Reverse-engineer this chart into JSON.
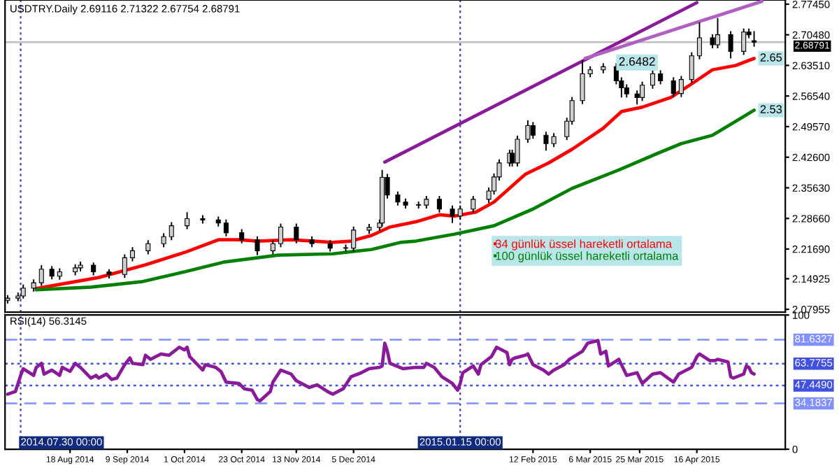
{
  "chart_data": [
    {
      "type": "candlestick",
      "title": "USDTRY.Daily 2.69116 2.71322 2.67754 2.68791",
      "x": [
        "2014-07-25",
        "2014-07-29",
        "2014-07-31",
        "2014-08-04",
        "2014-08-07",
        "2014-08-11",
        "2014-08-14",
        "2014-08-20",
        "2014-08-22",
        "2014-08-27",
        "2014-09-02",
        "2014-09-08",
        "2014-09-11",
        "2014-09-17",
        "2014-09-23",
        "2014-09-26",
        "2014-10-02",
        "2014-10-08",
        "2014-10-14",
        "2014-10-17",
        "2014-10-23",
        "2014-10-29",
        "2014-11-04",
        "2014-11-07",
        "2014-11-13",
        "2014-11-19",
        "2014-11-26",
        "2014-12-02",
        "2014-12-05",
        "2014-12-11",
        "2014-12-15",
        "2014-12-16",
        "2014-12-18",
        "2014-12-22",
        "2014-12-25",
        "2014-12-30",
        "2015-01-02",
        "2015-01-07",
        "2015-01-12",
        "2015-01-15",
        "2015-01-20",
        "2015-01-26",
        "2015-01-28",
        "2015-01-30",
        "2015-02-03",
        "2015-02-04",
        "2015-02-06",
        "2015-02-10",
        "2015-02-12",
        "2015-02-17",
        "2015-02-20",
        "2015-02-25",
        "2015-02-27",
        "2015-03-03",
        "2015-03-06",
        "2015-03-11",
        "2015-03-16",
        "2015-03-18",
        "2015-03-20",
        "2015-03-24",
        "2015-03-26",
        "2015-03-30",
        "2015-04-02",
        "2015-04-07",
        "2015-04-10",
        "2015-04-14",
        "2015-04-17",
        "2015-04-22",
        "2015-04-24",
        "2015-04-29",
        "2015-05-04",
        "2015-05-06",
        "2015-05-08"
      ],
      "ohlc": [
        [
          2.1,
          2.112,
          2.093,
          2.105
        ],
        [
          2.105,
          2.118,
          2.098,
          2.11
        ],
        [
          2.11,
          2.136,
          2.104,
          2.128
        ],
        [
          2.128,
          2.148,
          2.12,
          2.14
        ],
        [
          2.14,
          2.18,
          2.133,
          2.171
        ],
        [
          2.171,
          2.178,
          2.148,
          2.155
        ],
        [
          2.155,
          2.173,
          2.147,
          2.165
        ],
        [
          2.165,
          2.182,
          2.157,
          2.174
        ],
        [
          2.174,
          2.188,
          2.166,
          2.18
        ],
        [
          2.18,
          2.186,
          2.157,
          2.165
        ],
        [
          2.165,
          2.171,
          2.15,
          2.159
        ],
        [
          2.159,
          2.205,
          2.151,
          2.197
        ],
        [
          2.197,
          2.221,
          2.189,
          2.213
        ],
        [
          2.213,
          2.237,
          2.205,
          2.229
        ],
        [
          2.229,
          2.253,
          2.221,
          2.245
        ],
        [
          2.245,
          2.278,
          2.237,
          2.27
        ],
        [
          2.27,
          2.301,
          2.262,
          2.286
        ],
        [
          2.286,
          2.294,
          2.275,
          2.283
        ],
        [
          2.283,
          2.291,
          2.268,
          2.276
        ],
        [
          2.276,
          2.284,
          2.246,
          2.254
        ],
        [
          2.254,
          2.262,
          2.23,
          2.238
        ],
        [
          2.238,
          2.246,
          2.203,
          2.213
        ],
        [
          2.213,
          2.237,
          2.205,
          2.229
        ],
        [
          2.229,
          2.275,
          2.221,
          2.267
        ],
        [
          2.267,
          2.275,
          2.23,
          2.238
        ],
        [
          2.238,
          2.246,
          2.221,
          2.229
        ],
        [
          2.229,
          2.237,
          2.211,
          2.219
        ],
        [
          2.219,
          2.227,
          2.211,
          2.219
        ],
        [
          2.219,
          2.268,
          2.211,
          2.26
        ],
        [
          2.26,
          2.274,
          2.252,
          2.266
        ],
        [
          2.266,
          2.284,
          2.258,
          2.276
        ],
        [
          2.276,
          2.397,
          2.268,
          2.38
        ],
        [
          2.38,
          2.388,
          2.332,
          2.34
        ],
        [
          2.34,
          2.348,
          2.316,
          2.324
        ],
        [
          2.324,
          2.332,
          2.309,
          2.317
        ],
        [
          2.317,
          2.325,
          2.309,
          2.317
        ],
        [
          2.317,
          2.338,
          2.309,
          2.33
        ],
        [
          2.33,
          2.338,
          2.3,
          2.308
        ],
        [
          2.308,
          2.316,
          2.276,
          2.292
        ],
        [
          2.292,
          2.316,
          2.284,
          2.308
        ],
        [
          2.308,
          2.338,
          2.3,
          2.33
        ],
        [
          2.33,
          2.357,
          2.322,
          2.349
        ],
        [
          2.349,
          2.389,
          2.341,
          2.381
        ],
        [
          2.381,
          2.421,
          2.373,
          2.413
        ],
        [
          2.413,
          2.443,
          2.405,
          2.435
        ],
        [
          2.435,
          2.443,
          2.405,
          2.413
        ],
        [
          2.413,
          2.475,
          2.405,
          2.467
        ],
        [
          2.467,
          2.51,
          2.459,
          2.498
        ],
        [
          2.498,
          2.506,
          2.468,
          2.476
        ],
        [
          2.476,
          2.484,
          2.441,
          2.457
        ],
        [
          2.457,
          2.481,
          2.449,
          2.473
        ],
        [
          2.473,
          2.516,
          2.465,
          2.508
        ],
        [
          2.508,
          2.563,
          2.5,
          2.555
        ],
        [
          2.555,
          2.647,
          2.547,
          2.616
        ],
        [
          2.616,
          2.633,
          2.608,
          2.625
        ],
        [
          2.625,
          2.64,
          2.617,
          2.632
        ],
        [
          2.632,
          2.64,
          2.592,
          2.6
        ],
        [
          2.6,
          2.608,
          2.562,
          2.584
        ],
        [
          2.584,
          2.592,
          2.562,
          2.57
        ],
        [
          2.57,
          2.578,
          2.546,
          2.562
        ],
        [
          2.562,
          2.598,
          2.554,
          2.59
        ],
        [
          2.59,
          2.624,
          2.582,
          2.616
        ],
        [
          2.616,
          2.624,
          2.592,
          2.6
        ],
        [
          2.6,
          2.608,
          2.563,
          2.571
        ],
        [
          2.571,
          2.611,
          2.563,
          2.603
        ],
        [
          2.603,
          2.665,
          2.595,
          2.657
        ],
        [
          2.657,
          2.733,
          2.649,
          2.698
        ],
        [
          2.698,
          2.706,
          2.674,
          2.682
        ],
        [
          2.682,
          2.743,
          2.674,
          2.705
        ],
        [
          2.705,
          2.713,
          2.651,
          2.667
        ],
        [
          2.667,
          2.719,
          2.659,
          2.711
        ],
        [
          2.711,
          2.719,
          2.697,
          2.705
        ],
        [
          2.69116,
          2.71322,
          2.67754,
          2.68791
        ]
      ],
      "series": [
        {
          "type": "line",
          "name": "34 günlük üssel hareketli ortalama",
          "color": "#ff0000",
          "x": [
            "2014-08-05",
            "2014-08-29",
            "2014-09-16",
            "2014-10-01",
            "2014-10-14",
            "2014-10-22",
            "2014-10-29",
            "2014-11-11",
            "2014-11-27",
            "2014-12-04",
            "2014-12-12",
            "2014-12-19",
            "2014-12-29",
            "2015-01-07",
            "2015-01-13",
            "2015-01-21",
            "2015-01-28",
            "2015-02-09",
            "2015-02-18",
            "2015-02-27",
            "2015-03-11",
            "2015-03-18",
            "2015-03-26",
            "2015-04-06",
            "2015-04-14",
            "2015-04-22",
            "2015-05-01",
            "2015-05-08"
          ],
          "values": [
            2.127,
            2.152,
            2.181,
            2.209,
            2.238,
            2.238,
            2.235,
            2.238,
            2.232,
            2.235,
            2.248,
            2.267,
            2.279,
            2.295,
            2.292,
            2.301,
            2.324,
            2.387,
            2.413,
            2.444,
            2.492,
            2.53,
            2.54,
            2.562,
            2.593,
            2.625,
            2.635,
            2.651
          ],
          "value_labels": [
            null,
            null,
            null,
            null,
            null,
            null,
            null,
            null,
            null,
            null,
            null,
            null,
            null,
            null,
            null,
            null,
            null,
            null,
            null,
            null,
            null,
            null,
            null,
            null,
            null,
            null,
            null,
            "2.65"
          ]
        },
        {
          "type": "line",
          "name": "100 günlük üssel hareketli ortalama",
          "color": "#008000",
          "x": [
            "2014-08-05",
            "2014-08-26",
            "2014-09-15",
            "2014-10-01",
            "2014-10-16",
            "2014-11-06",
            "2014-11-27",
            "2014-12-12",
            "2014-12-23",
            "2014-12-29",
            "2015-01-13",
            "2015-01-28",
            "2015-02-12",
            "2015-02-27",
            "2015-03-17",
            "2015-04-01",
            "2015-04-10",
            "2015-04-22",
            "2015-05-01",
            "2015-05-08"
          ],
          "values": [
            2.124,
            2.13,
            2.143,
            2.165,
            2.187,
            2.203,
            2.206,
            2.216,
            2.232,
            2.235,
            2.251,
            2.27,
            2.308,
            2.355,
            2.397,
            2.435,
            2.457,
            2.476,
            2.508,
            2.533
          ],
          "value_labels": [
            null,
            null,
            null,
            null,
            null,
            null,
            null,
            null,
            null,
            null,
            null,
            null,
            null,
            null,
            null,
            null,
            null,
            null,
            null,
            "2.53"
          ]
        },
        {
          "type": "line",
          "color": "#8b1a9b",
          "x": [
            "2014-12-17",
            "2015-04-16"
          ],
          "values": [
            2.415,
            2.778
          ]
        },
        {
          "type": "line",
          "color": "#b060c0",
          "x": [
            "2015-03-04",
            "2015-05-11"
          ],
          "values": [
            2.651,
            2.781
          ]
        }
      ],
      "xlim": [
        "2014-07-24",
        "2015-05-20"
      ],
      "ylim": [
        2.073,
        2.784
      ],
      "yticks": [
        {
          "value": 2.7745,
          "label": "2.77450"
        },
        {
          "value": 2.7048,
          "label": "2.70480"
        },
        {
          "value": 2.6351,
          "label": "2.63510"
        },
        {
          "value": 2.5654,
          "label": "2.56540"
        },
        {
          "value": 2.4957,
          "label": "2.49570"
        },
        {
          "value": 2.426,
          "label": "2.42600"
        },
        {
          "value": 2.3563,
          "label": "2.35630"
        },
        {
          "value": 2.2866,
          "label": "2.28660"
        },
        {
          "value": 2.2169,
          "label": "2.21690"
        },
        {
          "value": 2.14925,
          "label": "2.14925"
        },
        {
          "value": 2.07955,
          "label": "2.07955"
        }
      ],
      "ref_lines": [
        {
          "axis": "y",
          "value": 2.68791,
          "label": "2.68791",
          "color": "#c0c0c0",
          "line_style": "solid"
        },
        {
          "axis": "x",
          "value": "2014-07-30",
          "color": "#4040c0",
          "line_style": "dotted"
        },
        {
          "axis": "x",
          "value": "2015-01-15",
          "color": "#4040c0",
          "line_style": "dotted"
        }
      ],
      "annotations": [
        "2.6482"
      ],
      "legend": "bottom right",
      "tick_labels": "y"
    },
    {
      "type": "line",
      "title": "RSI(14) 56.3145",
      "series": [
        {
          "color": "#8b1a9b",
          "x": [
            "2014-07-25",
            "2014-07-28",
            "2014-07-30",
            "2014-07-31",
            "2014-08-04",
            "2014-08-05",
            "2014-08-07",
            "2014-08-08",
            "2014-08-11",
            "2014-08-14",
            "2014-08-15",
            "2014-08-18",
            "2014-08-20",
            "2014-08-22",
            "2014-08-26",
            "2014-08-28",
            "2014-08-29",
            "2014-09-01",
            "2014-09-03",
            "2014-09-05",
            "2014-09-08",
            "2014-09-10",
            "2014-09-11",
            "2014-09-15",
            "2014-09-16",
            "2014-09-18",
            "2014-09-22",
            "2014-09-25",
            "2014-09-29",
            "2014-10-01",
            "2014-10-02",
            "2014-10-03",
            "2014-10-06",
            "2014-10-08",
            "2014-10-09",
            "2014-10-13",
            "2014-10-15",
            "2014-10-17",
            "2014-10-22",
            "2014-10-24",
            "2014-10-27",
            "2014-10-29",
            "2014-10-30",
            "2014-11-03",
            "2014-11-04",
            "2014-11-06",
            "2014-11-07",
            "2014-11-11",
            "2014-11-13",
            "2014-11-17",
            "2014-11-18",
            "2014-11-21",
            "2014-11-25",
            "2014-11-27",
            "2014-12-01",
            "2014-12-03",
            "2014-12-04",
            "2014-12-08",
            "2014-12-11",
            "2014-12-15",
            "2014-12-16",
            "2014-12-17",
            "2014-12-18",
            "2014-12-19",
            "2014-12-24",
            "2014-12-29",
            "2015-01-01",
            "2015-01-02",
            "2015-01-05",
            "2015-01-08",
            "2015-01-12",
            "2015-01-14",
            "2015-01-15",
            "2015-01-16",
            "2015-01-20",
            "2015-01-22",
            "2015-01-23",
            "2015-01-27",
            "2015-01-29",
            "2015-02-02",
            "2015-02-03",
            "2015-02-04",
            "2015-02-05",
            "2015-02-09",
            "2015-02-10",
            "2015-02-12",
            "2015-02-16",
            "2015-02-18",
            "2015-02-20",
            "2015-02-24",
            "2015-02-26",
            "2015-03-03",
            "2015-03-05",
            "2015-03-09",
            "2015-03-10",
            "2015-03-12",
            "2015-03-13",
            "2015-03-17",
            "2015-03-18",
            "2015-03-20",
            "2015-03-24",
            "2015-03-26",
            "2015-03-30",
            "2015-04-02",
            "2015-04-07",
            "2015-04-09",
            "2015-04-14",
            "2015-04-16",
            "2015-04-17",
            "2015-04-21",
            "2015-04-23",
            "2015-04-24",
            "2015-04-28",
            "2015-04-29",
            "2015-04-30",
            "2015-05-04",
            "2015-05-05",
            "2015-05-06",
            "2015-05-07",
            "2015-05-08"
          ],
          "values": [
            41,
            43,
            55,
            60,
            55,
            61,
            64,
            56,
            59,
            55,
            61,
            58,
            64,
            61,
            53,
            55,
            53,
            56,
            52,
            53,
            63,
            68,
            64,
            63,
            70,
            67,
            71,
            70,
            76,
            74,
            76,
            69,
            63,
            59,
            63,
            61,
            58,
            50,
            49,
            45,
            44,
            37,
            36,
            43,
            50,
            56,
            59,
            56,
            51,
            47,
            46,
            48,
            43,
            41,
            45,
            51,
            54,
            57,
            60,
            61,
            62,
            79,
            73,
            64,
            60,
            61,
            61,
            64,
            61,
            54,
            49,
            44,
            49,
            57,
            62,
            56,
            63,
            69,
            76,
            72,
            63,
            67,
            68,
            70,
            71,
            63,
            59,
            56,
            59,
            63,
            67,
            73,
            79,
            81,
            71,
            73,
            62,
            67,
            63,
            55,
            57,
            49,
            56,
            57,
            50,
            56,
            61,
            69,
            71,
            66,
            66,
            67,
            65,
            54,
            53,
            56,
            62,
            61,
            57,
            56
          ]
        }
      ],
      "xlim": [
        "2014-07-24",
        "2015-05-20"
      ],
      "ylim": [
        0,
        100
      ],
      "yticks": [
        0,
        100
      ],
      "xticks": [
        {
          "value": "2014-08-18",
          "label": "18 Aug 2014"
        },
        {
          "value": "2014-09-09",
          "label": "9 Sep 2014"
        },
        {
          "value": "2014-10-01",
          "label": "1 Oct 2014"
        },
        {
          "value": "2014-10-23",
          "label": "23 Oct 2014"
        },
        {
          "value": "2014-11-13",
          "label": "13 Nov 2014"
        },
        {
          "value": "2014-12-05",
          "label": "5 Dec 2014"
        },
        {
          "value": "2015-02-12",
          "label": "12 Feb 2015"
        },
        {
          "value": "2015-03-06",
          "label": "6 Mar 2015"
        },
        {
          "value": "2015-03-25",
          "label": "25 Mar 2015"
        },
        {
          "value": "2015-04-16",
          "label": "16 Apr 2015"
        }
      ],
      "ref_lines": [
        {
          "axis": "y",
          "value": 81.6327,
          "label": "81.6327",
          "color": "#8090ff",
          "line_style": "dashed"
        },
        {
          "axis": "y",
          "value": 63.7755,
          "label": "63.7755",
          "color": "#4050e0",
          "line_style": "dotted"
        },
        {
          "axis": "y",
          "value": 47.449,
          "label": "47.4490",
          "color": "#4050e0",
          "line_style": "dotted"
        },
        {
          "axis": "y",
          "value": 34.1837,
          "label": "34.1837",
          "color": "#8090ff",
          "line_style": "dashed"
        },
        {
          "axis": "x",
          "value": "2014-07-30",
          "label": "2014.07.30 00:00",
          "color": "#4040c0",
          "line_style": "dotted"
        },
        {
          "axis": "x",
          "value": "2015-01-15",
          "label": "2015.01.15 00:00",
          "color": "#4040c0",
          "line_style": "dotted"
        }
      ]
    }
  ]
}
